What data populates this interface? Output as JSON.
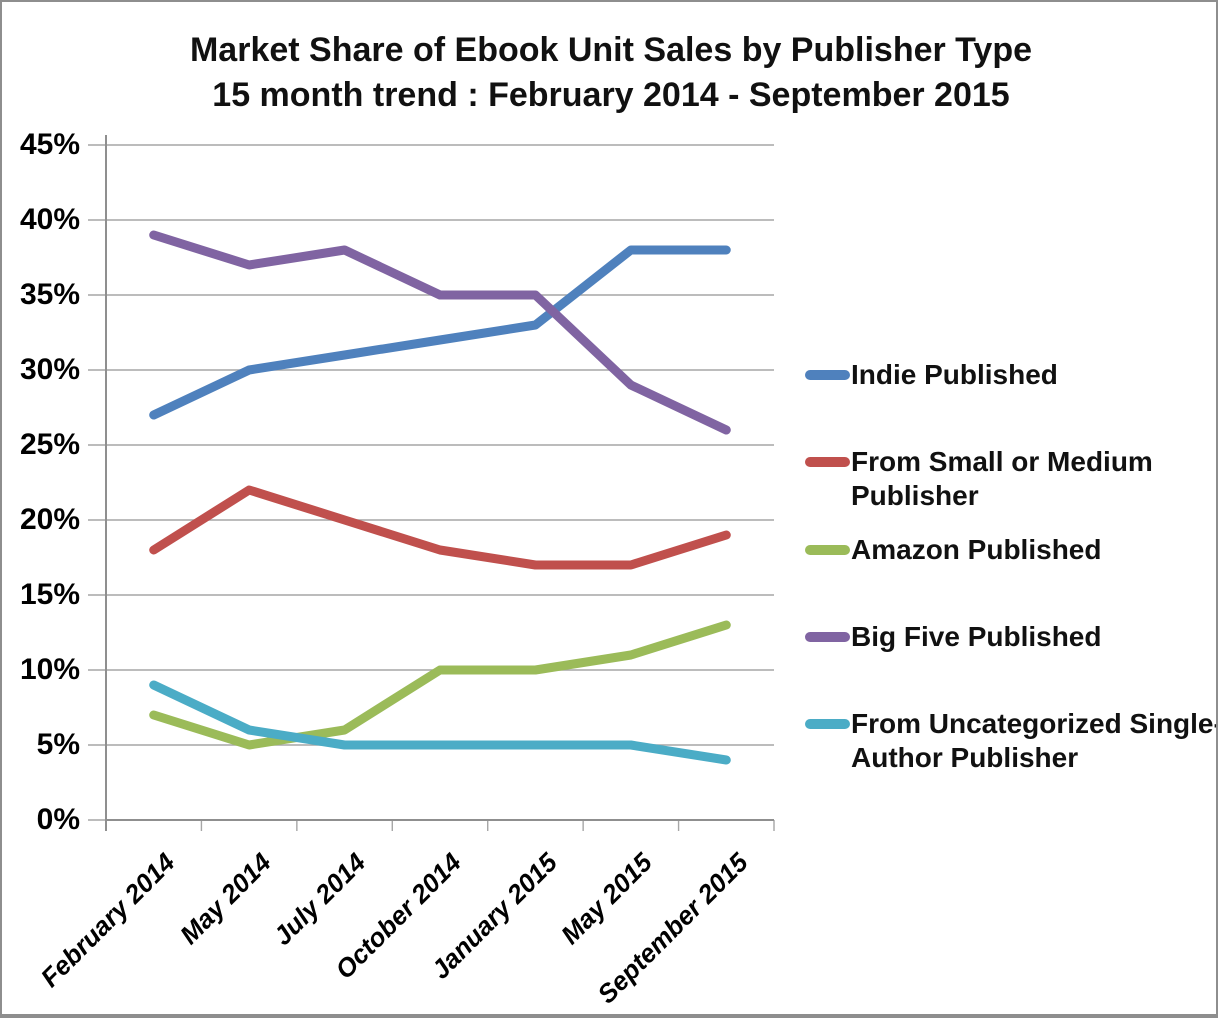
{
  "chart_data": {
    "type": "line",
    "title": "Market Share of Ebook Unit Sales by Publisher Type",
    "subtitle": "15 month trend : February 2014 - September 2015",
    "categories": [
      "February 2014",
      "May 2014",
      "July 2014",
      "October 2014",
      "January 2015",
      "May 2015",
      "September 2015"
    ],
    "series": [
      {
        "name": "Indie Published",
        "legend_lines": [
          "Indie Published"
        ],
        "color": "#4F81BD",
        "values": [
          27,
          30,
          31,
          32,
          33,
          38,
          38
        ]
      },
      {
        "name": "From Small or Medium Publisher",
        "legend_lines": [
          "From Small or Medium",
          "Publisher"
        ],
        "color": "#C0504D",
        "values": [
          18,
          22,
          20,
          18,
          17,
          17,
          19
        ]
      },
      {
        "name": "Amazon Published",
        "legend_lines": [
          "Amazon Published"
        ],
        "color": "#9BBB59",
        "values": [
          7,
          5,
          6,
          10,
          10,
          11,
          13
        ]
      },
      {
        "name": "Big Five Published",
        "legend_lines": [
          "Big Five Published"
        ],
        "color": "#8064A2",
        "values": [
          39,
          37,
          38,
          35,
          35,
          29,
          26
        ]
      },
      {
        "name": "From Uncategorized Single-Author Publisher",
        "legend_lines": [
          "From Uncategorized Single-",
          "Author Publisher"
        ],
        "color": "#4BACC6",
        "values": [
          9,
          6,
          5,
          5,
          5,
          5,
          4
        ]
      }
    ],
    "y_tick_labels": [
      "0%",
      "5%",
      "10%",
      "15%",
      "20%",
      "25%",
      "30%",
      "35%",
      "40%",
      "45%"
    ],
    "ylim": [
      0,
      45
    ],
    "y_step": 5,
    "grid": true,
    "legend_position": "right",
    "colors": {
      "gridline": "#A6A6A6",
      "axis": "#8F8F8F",
      "text": "#000000",
      "background": "#FFFFFF",
      "border": "#8E8E8E"
    }
  }
}
